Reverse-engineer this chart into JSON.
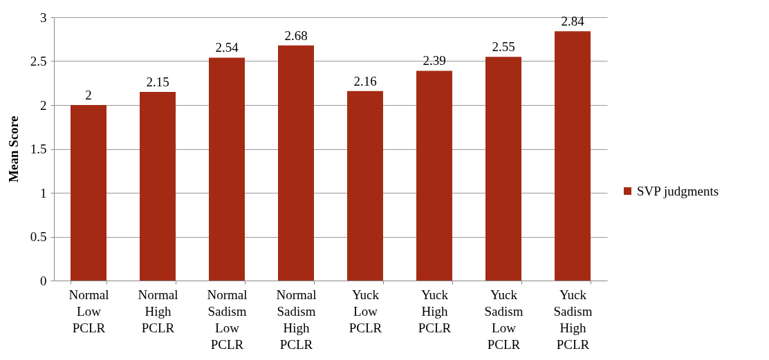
{
  "chart_data": {
    "type": "bar",
    "ylabel": "Mean Score",
    "categories": [
      "Normal Low PCLR",
      "Normal High PCLR",
      "Normal Sadism Low PCLR",
      "Normal Sadism High PCLR",
      "Yuck Low PCLR",
      "Yuck High PCLR",
      "Yuck Sadism Low PCLR",
      "Yuck Sadism High PCLR"
    ],
    "series": [
      {
        "name": "SVP judgments",
        "color": "#a52a14",
        "values": [
          2,
          2.15,
          2.54,
          2.68,
          2.16,
          2.39,
          2.55,
          2.84
        ]
      }
    ],
    "ylim": [
      0,
      3
    ],
    "yticks": [
      0,
      0.5,
      1,
      1.5,
      2,
      2.5,
      3
    ],
    "grid": "y",
    "legend": "right",
    "data_labels": true
  }
}
